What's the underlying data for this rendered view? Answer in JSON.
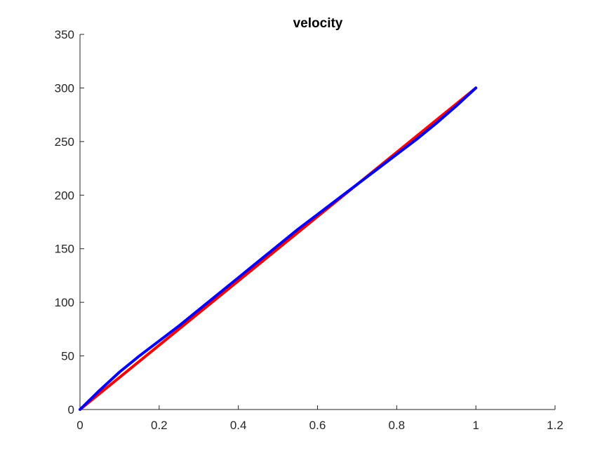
{
  "chart_data": {
    "type": "line",
    "title": "velocity",
    "xlabel": "",
    "ylabel": "",
    "xlim": [
      0,
      1.2
    ],
    "ylim": [
      0,
      350
    ],
    "xticks": [
      0,
      0.2,
      0.4,
      0.6,
      0.8,
      1,
      1.2
    ],
    "xtick_labels": [
      "0",
      "0.2",
      "0.4",
      "0.6",
      "0.8",
      "1",
      "1.2"
    ],
    "yticks": [
      0,
      50,
      100,
      150,
      200,
      250,
      300,
      350
    ],
    "ytick_labels": [
      "0",
      "50",
      "100",
      "150",
      "200",
      "250",
      "300",
      "350"
    ],
    "grid": false,
    "legend": "none",
    "series": [
      {
        "color": "#ff0000",
        "x": [
          0,
          0.1,
          0.2,
          0.3,
          0.4,
          0.5,
          0.6,
          0.7,
          0.8,
          0.9,
          1.0
        ],
        "y": [
          0,
          30,
          60,
          90,
          120,
          150,
          180,
          210,
          240,
          270,
          300
        ]
      },
      {
        "color": "#0000ff",
        "x": [
          0,
          0.05,
          0.1,
          0.15,
          0.2,
          0.25,
          0.3,
          0.35,
          0.4,
          0.45,
          0.5,
          0.55,
          0.6,
          0.65,
          0.7,
          0.75,
          0.8,
          0.85,
          0.9,
          0.95,
          1.0
        ],
        "y": [
          0,
          18,
          35,
          50,
          64,
          78,
          93,
          108,
          123,
          138,
          153,
          168,
          182,
          196,
          210,
          224,
          238,
          252,
          267,
          283,
          300
        ]
      }
    ]
  }
}
